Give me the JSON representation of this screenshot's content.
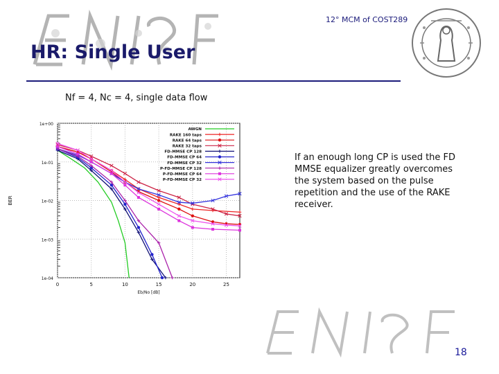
{
  "header": {
    "text": "12° MCM of COST289"
  },
  "slide": {
    "title": "HR: Single User",
    "subtitle": "Nf = 4, Nc = 4, single data flow",
    "description": "If an enough long CP is used the FD MMSE equalizer greatly overcomes the system based on the pulse repetition and the use of the RAKE receiver.",
    "page_number": "18"
  },
  "chart_data": {
    "type": "line",
    "xlabel": "Eb/No [dB]",
    "ylabel": "BER",
    "y_scale": "log",
    "xlim": [
      0,
      27
    ],
    "ylim": [
      0.0001,
      1
    ],
    "x_ticks": [
      0,
      5,
      10,
      15,
      20,
      25
    ],
    "y_tick_labels": [
      "1e+00",
      "1e-01",
      "1e-02",
      "1e-03",
      "1e-04"
    ],
    "grid": true,
    "legend_position": "top-right",
    "series": [
      {
        "name": "AWGN",
        "color": "#22cc22",
        "marker": "none",
        "points": [
          [
            0,
            0.2
          ],
          [
            2,
            0.12
          ],
          [
            4,
            0.07
          ],
          [
            6,
            0.03
          ],
          [
            8,
            0.009
          ],
          [
            9,
            0.003
          ],
          [
            10,
            0.0008
          ],
          [
            10.6,
            0.0001
          ]
        ]
      },
      {
        "name": "RAKE 160 taps",
        "color": "#ee2222",
        "marker": "plus",
        "points": [
          [
            0,
            0.25
          ],
          [
            3,
            0.18
          ],
          [
            5,
            0.12
          ],
          [
            8,
            0.06
          ],
          [
            10,
            0.035
          ],
          [
            12,
            0.02
          ],
          [
            15,
            0.012
          ],
          [
            18,
            0.008
          ],
          [
            20,
            0.006
          ],
          [
            23,
            0.0055
          ],
          [
            27,
            0.005
          ]
        ]
      },
      {
        "name": "RAKE 64 taps",
        "color": "#dd1111",
        "marker": "circle",
        "points": [
          [
            0,
            0.25
          ],
          [
            3,
            0.18
          ],
          [
            5,
            0.12
          ],
          [
            8,
            0.055
          ],
          [
            10,
            0.03
          ],
          [
            12,
            0.017
          ],
          [
            15,
            0.01
          ],
          [
            18,
            0.006
          ],
          [
            20,
            0.004
          ],
          [
            23,
            0.0028
          ],
          [
            25,
            0.0025
          ],
          [
            27,
            0.0024
          ]
        ]
      },
      {
        "name": "RAKE 32 taps",
        "color": "#cc2244",
        "marker": "x",
        "points": [
          [
            0,
            0.28
          ],
          [
            3,
            0.2
          ],
          [
            5,
            0.14
          ],
          [
            8,
            0.08
          ],
          [
            10,
            0.05
          ],
          [
            12,
            0.03
          ],
          [
            15,
            0.018
          ],
          [
            18,
            0.012
          ],
          [
            20,
            0.008
          ],
          [
            23,
            0.006
          ],
          [
            25,
            0.0045
          ],
          [
            27,
            0.004
          ]
        ]
      },
      {
        "name": "FD-MMSE CP 128",
        "color": "#111177",
        "marker": "plus",
        "points": [
          [
            0,
            0.2
          ],
          [
            3,
            0.12
          ],
          [
            5,
            0.06
          ],
          [
            8,
            0.02
          ],
          [
            10,
            0.006
          ],
          [
            12,
            0.0015
          ],
          [
            14,
            0.0003
          ],
          [
            16,
            0.0001
          ]
        ]
      },
      {
        "name": "FD-MMSE CP 64",
        "color": "#2222cc",
        "marker": "circle",
        "points": [
          [
            0,
            0.22
          ],
          [
            3,
            0.13
          ],
          [
            5,
            0.07
          ],
          [
            8,
            0.025
          ],
          [
            10,
            0.008
          ],
          [
            12,
            0.002
          ],
          [
            14,
            0.0004
          ],
          [
            15.5,
            0.0001
          ]
        ]
      },
      {
        "name": "FD-MMSE CP 32",
        "color": "#3333dd",
        "marker": "x",
        "points": [
          [
            0,
            0.22
          ],
          [
            3,
            0.15
          ],
          [
            5,
            0.1
          ],
          [
            8,
            0.05
          ],
          [
            10,
            0.03
          ],
          [
            12,
            0.02
          ],
          [
            15,
            0.014
          ],
          [
            18,
            0.009
          ],
          [
            20,
            0.0085
          ],
          [
            23,
            0.01
          ],
          [
            25,
            0.013
          ],
          [
            27,
            0.015
          ]
        ]
      },
      {
        "name": "P-FD-MMSE CP 128",
        "color": "#aa22aa",
        "marker": "plus",
        "points": [
          [
            0,
            0.22
          ],
          [
            3,
            0.14
          ],
          [
            5,
            0.08
          ],
          [
            8,
            0.03
          ],
          [
            10,
            0.01
          ],
          [
            12,
            0.003
          ],
          [
            15,
            0.0008
          ],
          [
            17,
            0.0001
          ]
        ]
      },
      {
        "name": "P-FD-MMSE CP 64",
        "color": "#dd33dd",
        "marker": "square",
        "points": [
          [
            0,
            0.25
          ],
          [
            3,
            0.16
          ],
          [
            5,
            0.1
          ],
          [
            8,
            0.05
          ],
          [
            10,
            0.025
          ],
          [
            12,
            0.012
          ],
          [
            15,
            0.006
          ],
          [
            18,
            0.003
          ],
          [
            20,
            0.002
          ],
          [
            23,
            0.0018
          ],
          [
            27,
            0.0017
          ]
        ]
      },
      {
        "name": "P-FD-MMSE CP 32",
        "color": "#ee55ee",
        "marker": "x",
        "points": [
          [
            0,
            0.3
          ],
          [
            3,
            0.2
          ],
          [
            5,
            0.12
          ],
          [
            8,
            0.06
          ],
          [
            10,
            0.03
          ],
          [
            12,
            0.016
          ],
          [
            15,
            0.008
          ],
          [
            18,
            0.004
          ],
          [
            20,
            0.003
          ],
          [
            23,
            0.0025
          ],
          [
            25,
            0.0023
          ],
          [
            27,
            0.0022
          ]
        ]
      }
    ]
  }
}
